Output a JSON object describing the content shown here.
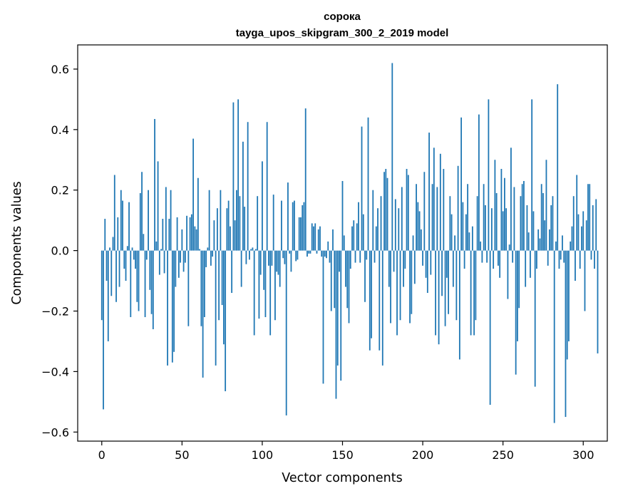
{
  "chart_data": {
    "type": "bar",
    "title": "сорока",
    "subtitle": "tayga_upos_skipgram_300_2_2019 model",
    "xlabel": "Vector components",
    "ylabel": "Components values",
    "xlim": [
      -15,
      315
    ],
    "ylim": [
      -0.63,
      0.68
    ],
    "xticks": [
      0,
      50,
      100,
      150,
      200,
      250,
      300
    ],
    "xtick_labels": [
      "0",
      "50",
      "100",
      "150",
      "200",
      "250",
      "300"
    ],
    "yticks": [
      -0.6,
      -0.4,
      -0.2,
      0.0,
      0.2,
      0.4,
      0.6
    ],
    "ytick_labels": [
      "−0.6",
      "−0.4",
      "−0.2",
      "0.0",
      "0.2",
      "0.4",
      "0.6"
    ],
    "bar_color": "#1f77b4",
    "grid": false,
    "legend": "none",
    "values": [
      -0.23,
      -0.525,
      0.105,
      -0.1,
      -0.3,
      0.01,
      -0.15,
      0.045,
      0.25,
      -0.17,
      0.11,
      -0.12,
      0.2,
      0.165,
      -0.06,
      -0.1,
      0.015,
      0.16,
      -0.22,
      0.01,
      -0.03,
      -0.06,
      -0.17,
      -0.2,
      0.19,
      0.26,
      0.055,
      -0.22,
      -0.03,
      0.2,
      -0.13,
      -0.21,
      -0.26,
      0.435,
      0.03,
      0.295,
      -0.08,
      0.005,
      0.105,
      -0.075,
      0.21,
      -0.38,
      0.105,
      0.2,
      -0.37,
      -0.335,
      -0.12,
      0.11,
      -0.09,
      -0.04,
      0.07,
      -0.07,
      -0.04,
      0.115,
      -0.25,
      0.11,
      0.12,
      0.37,
      0.08,
      0.07,
      0.24,
      0.005,
      -0.25,
      -0.42,
      -0.22,
      -0.055,
      0.01,
      0.2,
      -0.05,
      -0.02,
      0.1,
      -0.38,
      0.14,
      -0.23,
      0.2,
      -0.18,
      -0.31,
      -0.465,
      0.14,
      0.165,
      0.08,
      -0.14,
      0.49,
      0.1,
      0.2,
      0.5,
      0.18,
      -0.12,
      0.36,
      0.145,
      -0.045,
      0.425,
      -0.03,
      0.005,
      0.01,
      -0.28,
      0.005,
      0.18,
      -0.225,
      -0.08,
      0.295,
      -0.13,
      -0.22,
      0.425,
      -0.05,
      -0.28,
      -0.05,
      0.185,
      -0.23,
      -0.07,
      -0.08,
      -0.12,
      0.165,
      -0.025,
      -0.045,
      -0.545,
      0.225,
      -0.01,
      -0.07,
      0.16,
      0.165,
      -0.035,
      -0.03,
      0.11,
      0.11,
      0.15,
      0.16,
      0.47,
      -0.02,
      -0.01,
      -0.01,
      0.09,
      0.08,
      0.09,
      -0.01,
      0.07,
      0.08,
      -0.02,
      -0.44,
      -0.02,
      -0.025,
      0.03,
      -0.04,
      -0.2,
      0.07,
      -0.19,
      -0.49,
      -0.38,
      -0.07,
      -0.43,
      0.23,
      0.05,
      -0.12,
      -0.19,
      -0.24,
      -0.06,
      0.08,
      0.1,
      -0.04,
      0.09,
      0.16,
      -0.04,
      0.41,
      0.12,
      -0.17,
      -0.03,
      0.44,
      -0.33,
      -0.29,
      0.2,
      -0.04,
      0.08,
      0.14,
      -0.33,
      0.18,
      -0.38,
      0.26,
      0.27,
      0.24,
      -0.12,
      -0.24,
      0.62,
      -0.07,
      0.17,
      -0.28,
      0.14,
      -0.23,
      0.21,
      -0.12,
      -0.06,
      0.27,
      0.25,
      -0.24,
      -0.21,
      0.05,
      -0.11,
      0.22,
      0.16,
      0.13,
      0.07,
      -0.05,
      0.26,
      -0.09,
      -0.14,
      0.39,
      -0.08,
      0.22,
      0.34,
      -0.28,
      0.21,
      -0.31,
      0.32,
      -0.15,
      0.27,
      -0.25,
      -0.09,
      -0.21,
      0.18,
      0.12,
      -0.12,
      0.05,
      -0.23,
      0.28,
      -0.36,
      0.44,
      0.16,
      -0.06,
      0.12,
      0.22,
      0.06,
      -0.28,
      0.08,
      -0.28,
      -0.23,
      0.18,
      0.45,
      0.03,
      -0.04,
      0.22,
      0.15,
      -0.04,
      0.5,
      -0.51,
      0.14,
      -0.06,
      0.3,
      0.19,
      -0.05,
      -0.09,
      0.27,
      0.13,
      0.24,
      0.14,
      -0.16,
      0.02,
      0.34,
      -0.04,
      0.21,
      -0.41,
      -0.3,
      -0.19,
      0.18,
      0.22,
      0.23,
      -0.12,
      0.15,
      0.06,
      -0.09,
      0.5,
      0.13,
      -0.45,
      -0.06,
      0.07,
      0.04,
      0.22,
      0.19,
      0.1,
      0.3,
      -0.05,
      0.07,
      0.15,
      0.18,
      -0.57,
      0.03,
      0.55,
      -0.06,
      -0.03,
      0.05,
      -0.04,
      -0.55,
      -0.36,
      -0.3,
      0.03,
      0.08,
      0.18,
      -0.1,
      0.25,
      0.12,
      -0.06,
      0.08,
      0.13,
      -0.2,
      0.1,
      0.22,
      0.22,
      -0.03,
      0.15,
      -0.06,
      0.17,
      -0.34
    ]
  }
}
